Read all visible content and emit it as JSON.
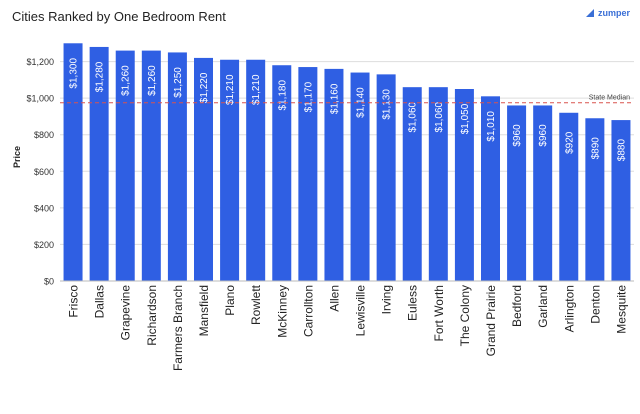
{
  "header": {
    "title": "Cities Ranked by One Bedroom Rent",
    "brand": "zumper"
  },
  "colors": {
    "bar": "#2f5fe3",
    "median_line": "#d9534f",
    "grid": "#dddddd"
  },
  "chart_data": {
    "type": "bar",
    "title": "Cities Ranked by One Bedroom Rent",
    "xlabel": "",
    "ylabel": "Price",
    "ylim": [
      0,
      1400
    ],
    "yticks": [
      0,
      200,
      400,
      600,
      800,
      1000,
      1200
    ],
    "ytick_labels": [
      "$0",
      "$200",
      "$400",
      "$600",
      "$800",
      "$1,000",
      "$1,200"
    ],
    "categories": [
      "Frisco",
      "Dallas",
      "Grapevine",
      "Richardson",
      "Farmers Branch",
      "Mansfield",
      "Plano",
      "Rowlett",
      "McKinney",
      "Carrollton",
      "Allen",
      "Lewisville",
      "Irving",
      "Euless",
      "Fort Worth",
      "The Colony",
      "Grand Prairie",
      "Bedford",
      "Garland",
      "Arlington",
      "Denton",
      "Mesquite"
    ],
    "values": [
      1300,
      1280,
      1260,
      1260,
      1250,
      1220,
      1210,
      1210,
      1180,
      1170,
      1160,
      1140,
      1130,
      1060,
      1060,
      1050,
      1010,
      960,
      960,
      920,
      890,
      880
    ],
    "data_labels": [
      "$1,300",
      "$1,280",
      "$1,260",
      "$1,260",
      "$1,250",
      "$1,220",
      "$1,210",
      "$1,210",
      "$1,180",
      "$1,170",
      "$1,160",
      "$1,140",
      "$1,130",
      "$1,060",
      "$1,060",
      "$1,050",
      "$1,010",
      "$960",
      "$960",
      "$920",
      "$890",
      "$880"
    ],
    "reference_line": {
      "label": "State Median",
      "value": 975
    },
    "grid": true
  }
}
